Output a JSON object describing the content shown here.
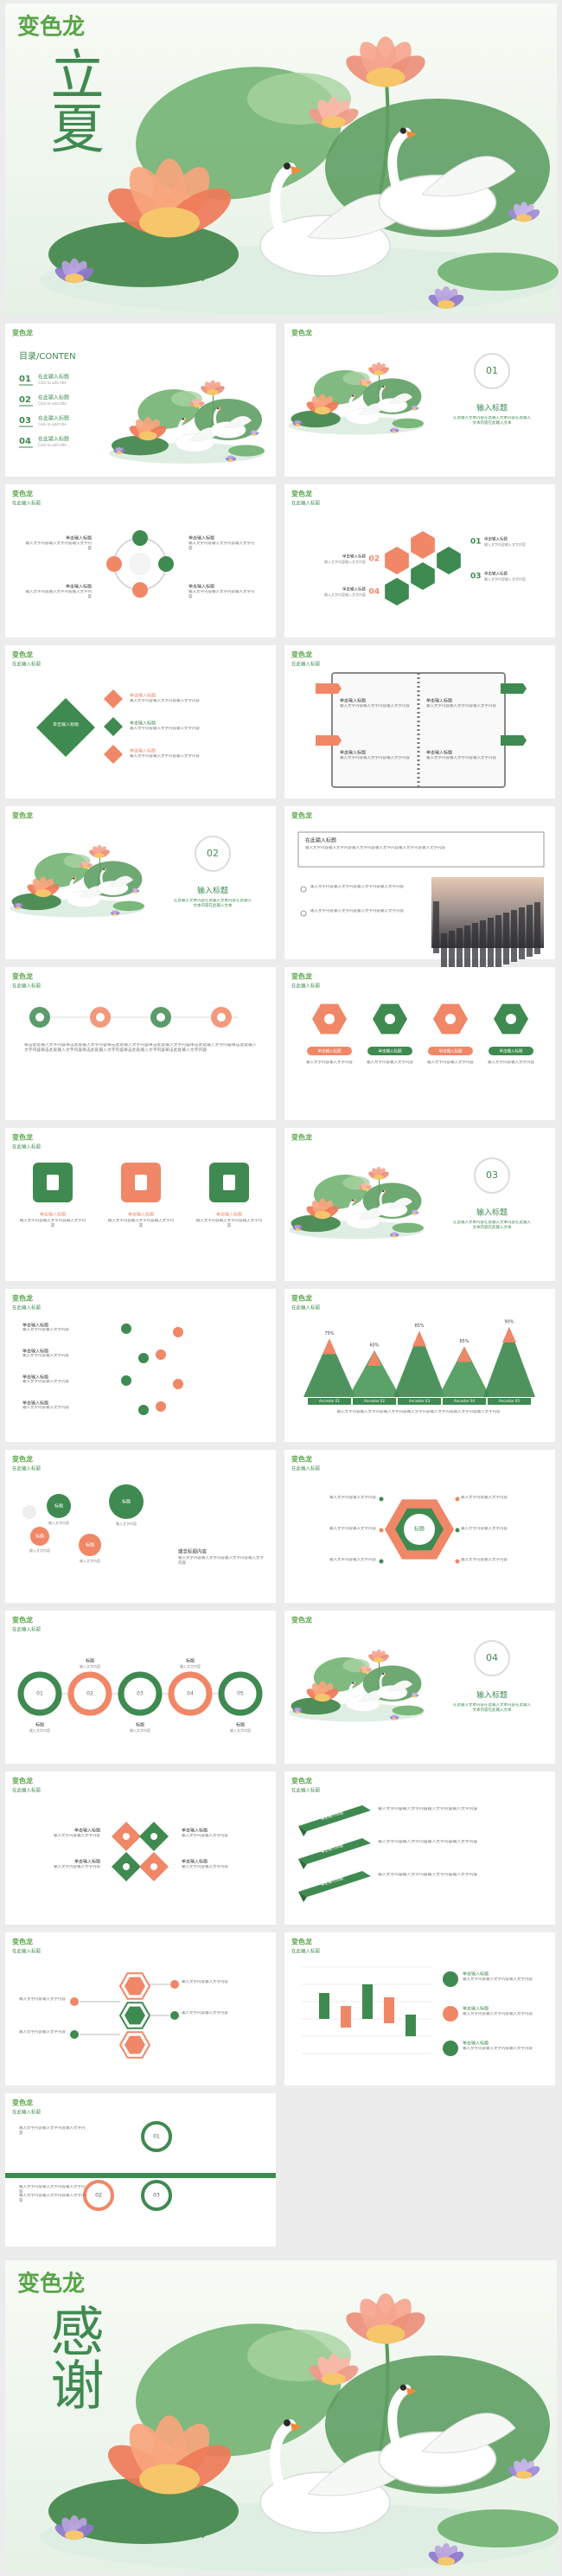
{
  "cover": {
    "logo": "变色龙",
    "title": "立夏"
  },
  "slides": [
    {
      "logo": "变色龙",
      "heading": "目录/CONTEN",
      "items": [
        {
          "num": "01",
          "title": "在此输入标题",
          "sub": "Click to add title"
        },
        {
          "num": "02",
          "title": "在此输入标题",
          "sub": "Click to add title"
        },
        {
          "num": "03",
          "title": "在此输入标题",
          "sub": "Click to add title"
        },
        {
          "num": "04",
          "title": "在此输入标题",
          "sub": "Click to add title"
        }
      ]
    },
    {
      "logo": "变色龙",
      "num": "01",
      "title": "输入标题",
      "text": "在此输入文本内容在此输入文本内容在此输入文本内容在此输入文本"
    },
    {
      "logo": "变色龙",
      "title": "在此输入标题",
      "items": [
        {
          "title": "单击输入标题",
          "text": "输入文字内容输入文字内容输入文字内容"
        },
        {
          "title": "单击输入标题",
          "text": "输入文字内容输入文字内容输入文字内容"
        },
        {
          "title": "单击输入标题",
          "text": "输入文字内容输入文字内容输入文字内容"
        },
        {
          "title": "单击输入标题",
          "text": "输入文字内容输入文字内容输入文字内容"
        }
      ]
    },
    {
      "logo": "变色龙",
      "title": "在此输入标题",
      "items": [
        {
          "num": "01",
          "title": "单击输入标题",
          "text": "输入文字内容输入文字内容"
        },
        {
          "num": "02",
          "title": "单击输入标题",
          "text": "输入文字内容输入文字内容"
        },
        {
          "num": "03",
          "title": "单击输入标题",
          "text": "输入文字内容输入文字内容"
        },
        {
          "num": "04",
          "title": "单击输入标题",
          "text": "输入文字内容输入文字内容"
        }
      ]
    },
    {
      "logo": "变色龙",
      "title": "在此输入标题",
      "center": "单击输入标题",
      "items": [
        {
          "title": "单击输入标题",
          "text": "输入文字内容输入文字内容输入文字内容"
        },
        {
          "title": "单击输入标题",
          "text": "输入文字内容输入文字内容输入文字内容"
        },
        {
          "title": "单击输入标题",
          "text": "输入文字内容输入文字内容输入文字内容"
        }
      ]
    },
    {
      "logo": "变色龙",
      "title": "在此输入标题",
      "items": [
        {
          "title": "单击输入标题",
          "text": "输入文字内容输入文字内容输入文字内容"
        },
        {
          "title": "单击输入标题",
          "text": "输入文字内容输入文字内容输入文字内容"
        },
        {
          "title": "单击输入标题",
          "text": "输入文字内容输入文字内容输入文字内容"
        },
        {
          "title": "单击输入标题",
          "text": "输入文字内容输入文字内容输入文字内容"
        }
      ]
    },
    {
      "logo": "变色龙",
      "num": "02",
      "title": "输入标题",
      "text": "在此输入文本内容在此输入文本内容在此输入文本内容在此输入文本"
    },
    {
      "logo": "变色龙",
      "heading": "在此输入标题",
      "text": "输入文字内容输入文字内容输入文字内容输入文字内容输入文字内容输入文字内容",
      "items": [
        {
          "text": "输入文字内容输入文字内容输入文字内容输入文字内容"
        },
        {
          "text": "输入文字内容输入文字内容输入文字内容输入文字内容"
        }
      ]
    },
    {
      "logo": "变色龙",
      "title": "在此输入标题",
      "text": "单击此处输入文字内容单击此处输入文字内容单击此处输入文字内容单击此处输入文字内容单击此处输入文字内容单击此处输入文字内容单击此处输入文字内容单击此处输入文字内容单击此处输入文字内容单击此处输入文字内容"
    },
    {
      "logo": "变色龙",
      "title": "在此输入标题",
      "items": [
        {
          "title": "单击输入标题",
          "text": "输入文字内容输入文字内容"
        },
        {
          "title": "单击输入标题",
          "text": "输入文字内容输入文字内容"
        },
        {
          "title": "单击输入标题",
          "text": "输入文字内容输入文字内容"
        },
        {
          "title": "单击输入标题",
          "text": "输入文字内容输入文字内容"
        }
      ]
    },
    {
      "logo": "变色龙",
      "title": "在此输入标题",
      "items": [
        {
          "title": "单击输入标题",
          "text": "输入文字内容输入文字内容输入文字内容"
        },
        {
          "title": "单击输入标题",
          "text": "输入文字内容输入文字内容输入文字内容"
        },
        {
          "title": "单击输入标题",
          "text": "输入文字内容输入文字内容输入文字内容"
        }
      ]
    },
    {
      "logo": "变色龙",
      "num": "03",
      "title": "输入标题",
      "text": "在此输入文本内容在此输入文本内容在此输入文本内容在此输入文本"
    },
    {
      "logo": "变色龙",
      "title": "在此输入标题",
      "items": [
        {
          "title": "单击输入标题",
          "text": "输入文字内容输入文字内容"
        },
        {
          "title": "单击输入标题",
          "text": "输入文字内容输入文字内容"
        },
        {
          "title": "单击输入标题",
          "text": "输入文字内容输入文字内容"
        },
        {
          "title": "单击输入标题",
          "text": "输入文字内容输入文字内容"
        }
      ]
    },
    {
      "logo": "变色龙",
      "title": "在此输入标题",
      "items": [
        {
          "label": "75%",
          "name": "Ancestor 01"
        },
        {
          "label": "60%",
          "name": "Ancestor 02"
        },
        {
          "label": "85%",
          "name": "Ancestor 03"
        },
        {
          "label": "65%",
          "name": "Ancestor 04"
        },
        {
          "label": "90%",
          "name": "Ancestor 05"
        }
      ],
      "text": "输入文字内容输入文字内容输入文字内容输入文字内容输入文字内容输入文字内容输入文字内容"
    },
    {
      "logo": "变色龙",
      "title": "在此输入标题",
      "items": [
        {
          "label": "标题",
          "text": "输入文字内容"
        },
        {
          "label": "标题",
          "text": "输入文字内容"
        },
        {
          "label": "标题",
          "text": "输入文字内容"
        },
        {
          "label": "标题",
          "text": "输入文字内容"
        }
      ],
      "note": {
        "title": "理念标题内容",
        "text": "输入文字内容输入文字内容输入文字内容输入文字内容"
      }
    },
    {
      "logo": "变色龙",
      "title": "在此输入标题",
      "center": "标题",
      "items": [
        {
          "text": "输入文字内容输入文字内容"
        },
        {
          "text": "输入文字内容输入文字内容"
        },
        {
          "text": "输入文字内容输入文字内容"
        },
        {
          "text": "输入文字内容输入文字内容"
        },
        {
          "text": "输入文字内容输入文字内容"
        },
        {
          "text": "输入文字内容输入文字内容"
        }
      ]
    },
    {
      "logo": "变色龙",
      "title": "在此输入标题",
      "items": [
        {
          "num": "01",
          "title": "标题",
          "text": "输入文字内容"
        },
        {
          "num": "02",
          "title": "标题",
          "text": "输入文字内容"
        },
        {
          "num": "03",
          "title": "标题",
          "text": "输入文字内容"
        },
        {
          "num": "04",
          "title": "标题",
          "text": "输入文字内容"
        },
        {
          "num": "05",
          "title": "标题",
          "text": "输入文字内容"
        }
      ]
    },
    {
      "logo": "变色龙",
      "num": "04",
      "title": "输入标题",
      "text": "在此输入文本内容在此输入文本内容在此输入文本内容在此输入文本"
    },
    {
      "logo": "变色龙",
      "title": "在此输入标题",
      "items": [
        {
          "title": "单击输入标题",
          "text": "输入文字内容输入文字内容"
        },
        {
          "title": "单击输入标题",
          "text": "输入文字内容输入文字内容"
        },
        {
          "title": "单击输入标题",
          "text": "输入文字内容输入文字内容"
        },
        {
          "title": "单击输入标题",
          "text": "输入文字内容输入文字内容"
        }
      ]
    },
    {
      "logo": "变色龙",
      "title": "在此输入标题",
      "items": [
        {
          "title": "单击输入标题",
          "text": "输入文字内容输入文字内容输入文字内容输入文字内容"
        },
        {
          "title": "单击输入标题",
          "text": "输入文字内容输入文字内容输入文字内容输入文字内容"
        },
        {
          "title": "单击输入标题",
          "text": "输入文字内容输入文字内容输入文字内容输入文字内容"
        }
      ]
    },
    {
      "logo": "变色龙",
      "title": "在此输入标题",
      "items": [
        {
          "text": "输入文字内容输入文字内容"
        },
        {
          "text": "输入文字内容输入文字内容"
        },
        {
          "text": "输入文字内容输入文字内容"
        },
        {
          "text": "输入文字内容输入文字内容"
        }
      ]
    },
    {
      "logo": "变色龙",
      "title": "在此输入标题",
      "items": [
        {
          "title": "单击输入标题",
          "text": "输入文字内容输入文字内容输入文字内容"
        },
        {
          "title": "单击输入标题",
          "text": "输入文字内容输入文字内容输入文字内容"
        },
        {
          "title": "单击输入标题",
          "text": "输入文字内容输入文字内容输入文字内容"
        }
      ]
    },
    {
      "logo": "变色龙",
      "title": "在此输入标题",
      "items": [
        {
          "num": "01",
          "text": "输入文字内容输入文字内容输入文字内容"
        },
        {
          "num": "02",
          "text": "输入文字内容输入文字内容输入文字内容"
        },
        {
          "num": "03",
          "text": "输入文字内容输入文字内容输入文字内容"
        }
      ]
    }
  ],
  "ending": {
    "logo": "变色龙",
    "title": "感谢"
  }
}
